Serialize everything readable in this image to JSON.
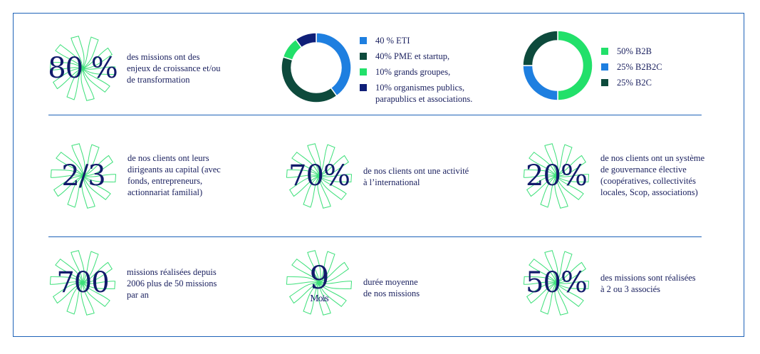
{
  "chart_data": [
    {
      "type": "pie",
      "donut": true,
      "categories": [
        "40 % ETI",
        "40% PME et startup,",
        "10% grands groupes,",
        "10% organismes publics,\n        parapublics et associations."
      ],
      "values": [
        40,
        40,
        10,
        10
      ],
      "colors": [
        "#1e7fe0",
        "#0d4a3c",
        "#22e06a",
        "#0f1f78"
      ],
      "legend": "right"
    },
    {
      "type": "pie",
      "donut": true,
      "categories": [
        "50% B2B",
        "25% B2B2C",
        "25% B2C"
      ],
      "values": [
        50,
        25,
        25
      ],
      "colors": [
        "#22e06a",
        "#1e7fe0",
        "#0d4a3c"
      ],
      "legend": "right"
    }
  ],
  "stats": [
    {
      "value": "80 %",
      "sub": "",
      "text": "des missions ont des\n enjeux de croissance et/ou\nde transformation"
    },
    {
      "value": "2/3",
      "sub": "",
      "text": "de nos clients ont leurs\ndirigeants au capital (avec\n fonds, entrepreneurs,\n actionnariat  familial)"
    },
    {
      "value": "70%",
      "sub": "",
      "text": "de nos clients ont une activité\nà l’international"
    },
    {
      "value": "20%",
      "sub": "",
      "text": "de nos clients ont un système\nde gouvernance élective\n(coopératives, collectivités\nlocales, Scop, associations)"
    },
    {
      "value": "700",
      "sub": "",
      "text": "missions réalisées depuis\n2006 plus de 50 missions\npar an"
    },
    {
      "value": "9",
      "sub": "Mois",
      "text": "durée moyenne\nde nos missions"
    },
    {
      "value": "50%",
      "sub": "",
      "text": "des missions sont réalisées\nà 2 ou 3 associés"
    }
  ],
  "colors": {
    "rosette": "#3de07a",
    "rule": "#1f63b8",
    "number": "#111b6b"
  }
}
